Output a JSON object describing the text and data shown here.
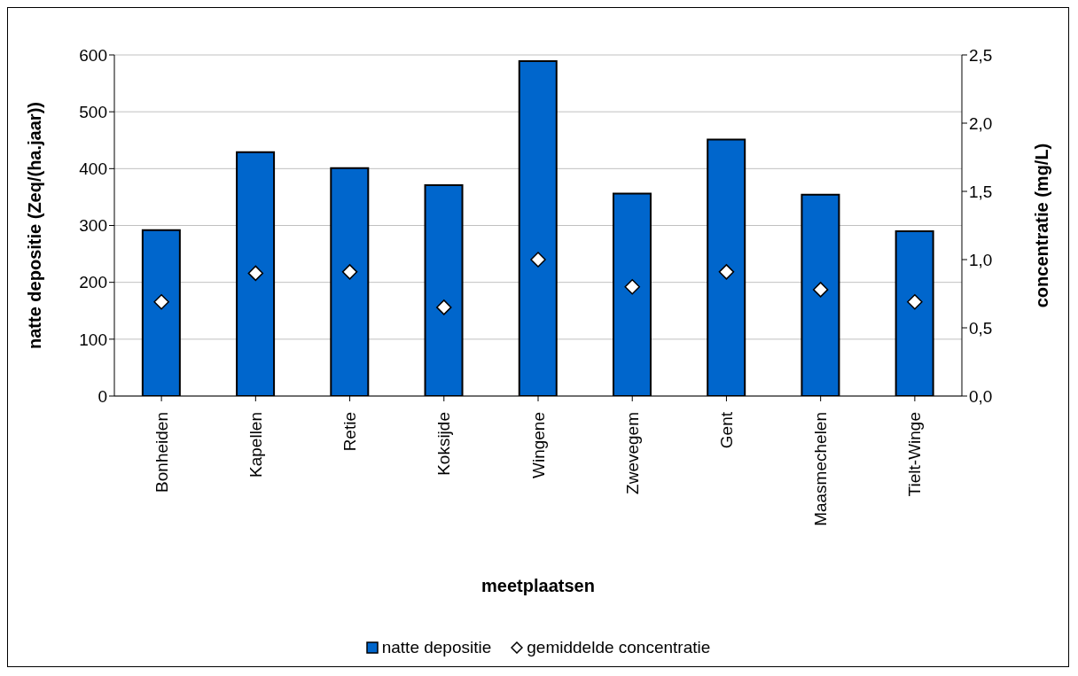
{
  "chart_data": {
    "type": "bar",
    "xlabel": "meetplaatsen",
    "ylabel": "natte depositie (Zeq/(ha.jaar))",
    "y2label": "concentratie (mg/L)",
    "categories": [
      "Bonheiden",
      "Kapellen",
      "Retie",
      "Koksijde",
      "Wingene",
      "Zwevegem",
      "Gent",
      "Maasmechelen",
      "Tielt-Winge"
    ],
    "series": [
      {
        "name": "natte depositie",
        "color": "#0066cc",
        "values": [
          292,
          429,
          401,
          371,
          589,
          356,
          451,
          354,
          290
        ]
      },
      {
        "name": "gemiddelde concentratie",
        "type": "scatter",
        "axis": "y2",
        "color": "#ffffff",
        "marker": "diamond",
        "values": [
          0.69,
          0.9,
          0.91,
          0.65,
          1.0,
          0.8,
          0.91,
          0.78,
          0.69
        ]
      }
    ],
    "ylim": [
      0,
      600
    ],
    "yticks": [
      0,
      100,
      200,
      300,
      400,
      500,
      600
    ],
    "y2lim": [
      0,
      2.5
    ],
    "y2ticks": [
      {
        "value": 0,
        "label": "0,0"
      },
      {
        "value": 0.5,
        "label": "0,5"
      },
      {
        "value": 1,
        "label": "1,0"
      },
      {
        "value": 1.5,
        "label": "1,5"
      },
      {
        "value": 2,
        "label": "2,0"
      },
      {
        "value": 2.5,
        "label": "2,5"
      }
    ],
    "grid": "y",
    "legend": "bottom"
  }
}
